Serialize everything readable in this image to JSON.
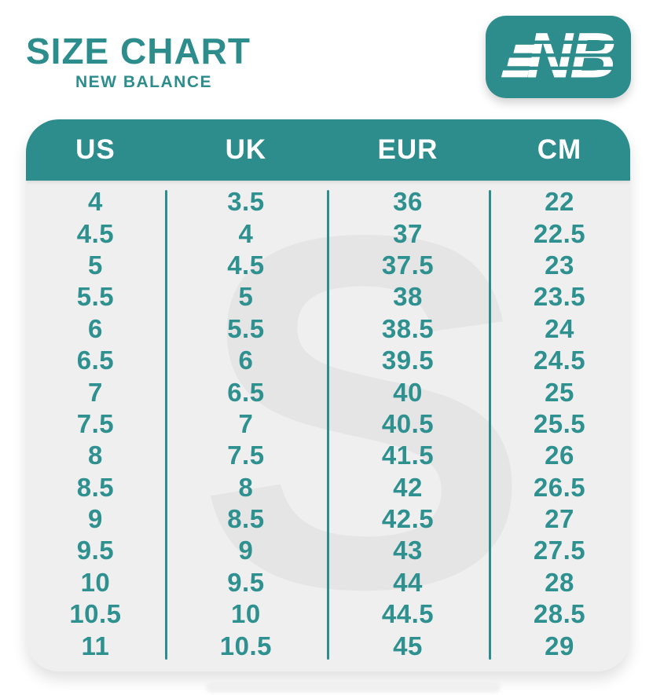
{
  "header": {
    "title": "SIZE CHART",
    "subtitle": "NEW BALANCE",
    "logo_letters": "NB"
  },
  "table": {
    "watermark": "S"
  },
  "colors": {
    "teal": "#2d8c8c",
    "text_teal": "#2e9190",
    "body_bg": "#efefef",
    "watermark_gray": "#e5e5e5",
    "header_text": "#ffffff",
    "page_bg": "#ffffff"
  },
  "chart_data": {
    "type": "table",
    "title": "SIZE CHART",
    "subtitle": "NEW BALANCE",
    "columns": [
      "US",
      "UK",
      "EUR",
      "CM"
    ],
    "rows": [
      [
        "4",
        "3.5",
        "36",
        "22"
      ],
      [
        "4.5",
        "4",
        "37",
        "22.5"
      ],
      [
        "5",
        "4.5",
        "37.5",
        "23"
      ],
      [
        "5.5",
        "5",
        "38",
        "23.5"
      ],
      [
        "6",
        "5.5",
        "38.5",
        "24"
      ],
      [
        "6.5",
        "6",
        "39.5",
        "24.5"
      ],
      [
        "7",
        "6.5",
        "40",
        "25"
      ],
      [
        "7.5",
        "7",
        "40.5",
        "25.5"
      ],
      [
        "8",
        "7.5",
        "41.5",
        "26"
      ],
      [
        "8.5",
        "8",
        "42",
        "26.5"
      ],
      [
        "9",
        "8.5",
        "42.5",
        "27"
      ],
      [
        "9.5",
        "9",
        "43",
        "27.5"
      ],
      [
        "10",
        "9.5",
        "44",
        "28"
      ],
      [
        "10.5",
        "10",
        "44.5",
        "28.5"
      ],
      [
        "11",
        "10.5",
        "45",
        "29"
      ]
    ]
  }
}
